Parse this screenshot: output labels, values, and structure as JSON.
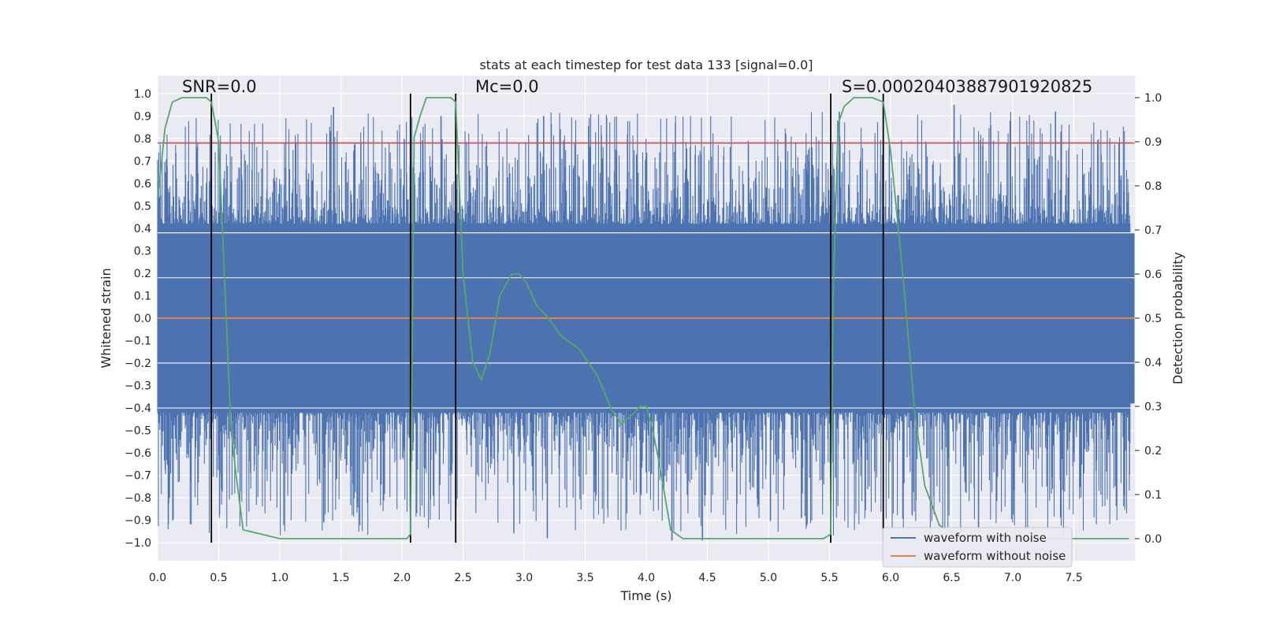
{
  "chart_data": {
    "type": "line",
    "title": "stats at each timestep for test data 133 [signal=0.0]",
    "xlabel": "Time (s)",
    "ylabel": "Whitened strain",
    "y2label": "Detection probability",
    "xlim": [
      0.0,
      8.0
    ],
    "ylim": [
      -1.08,
      1.08
    ],
    "y2lim": [
      -0.05,
      1.05
    ],
    "x_ticks": [
      0.0,
      0.5,
      1.0,
      1.5,
      2.0,
      2.5,
      3.0,
      3.5,
      4.0,
      4.5,
      5.0,
      5.5,
      6.0,
      6.5,
      7.0,
      7.5
    ],
    "x_tick_labels": [
      "0.0",
      "0.5",
      "1.0",
      "1.5",
      "2.0",
      "2.5",
      "3.0",
      "3.5",
      "4.0",
      "4.5",
      "5.0",
      "5.5",
      "6.0",
      "6.5",
      "7.0",
      "7.5"
    ],
    "y_ticks": [
      1.0,
      0.9,
      0.8,
      0.7,
      0.6,
      0.5,
      0.4,
      0.3,
      0.2,
      0.1,
      0.0,
      -0.1,
      -0.2,
      -0.3,
      -0.4,
      -0.5,
      -0.6,
      -0.7,
      -0.8,
      -0.9,
      -1.0
    ],
    "y_tick_labels": [
      "1.0",
      "0.9",
      "0.8",
      "0.7",
      "0.6",
      "0.5",
      "0.4",
      "0.3",
      "0.2",
      "0.1",
      "0.0",
      "−0.1",
      "−0.2",
      "−0.3",
      "−0.4",
      "−0.5",
      "−0.6",
      "−0.7",
      "−0.8",
      "−0.9",
      "−1.0"
    ],
    "y2_ticks": [
      1.0,
      0.9,
      0.8,
      0.7,
      0.6,
      0.5,
      0.4,
      0.3,
      0.2,
      0.1,
      0.0
    ],
    "y2_tick_labels": [
      "1.0",
      "0.9",
      "0.8",
      "0.7",
      "0.6",
      "0.5",
      "0.4",
      "0.3",
      "0.2",
      "0.1",
      "0.0"
    ],
    "annotations": [
      {
        "text": "SNR=0.0",
        "x": 0.2,
        "y": 1.02
      },
      {
        "text": "Mᴄ=0.0",
        "x": 2.6,
        "y": 1.02
      },
      {
        "text": "S=0.00020403887901920825",
        "x": 5.6,
        "y": 1.02
      }
    ],
    "threshold_line": {
      "y": 0.78,
      "color": "#c44e52"
    },
    "vertical_lines": [
      0.44,
      2.07,
      2.44,
      5.51,
      5.94
    ],
    "noise_envelope": {
      "upper": 0.45,
      "lower": -0.45,
      "spike_max": 0.94,
      "spike_min": -0.99
    },
    "series": [
      {
        "name": "waveform with noise",
        "color": "#4c72b0",
        "style": "dense-noise",
        "envelope": [
          0.45,
          -0.45
        ],
        "peaks": [
          {
            "x": 1.44,
            "y": 0.94
          },
          {
            "x": 2.32,
            "y": 0.9
          },
          {
            "x": 3.16,
            "y": 0.9
          },
          {
            "x": 5.58,
            "y": 0.92
          },
          {
            "x": 6.52,
            "y": 0.95
          },
          {
            "x": 7.35,
            "y": 0.92
          },
          {
            "x": 3.19,
            "y": -0.98
          },
          {
            "x": 4.21,
            "y": -0.99
          },
          {
            "x": 4.46,
            "y": -0.99
          },
          {
            "x": 6.72,
            "y": -0.98
          },
          {
            "x": 1.36,
            "y": -0.91
          },
          {
            "x": 5.27,
            "y": -0.89
          }
        ]
      },
      {
        "name": "waveform without noise",
        "color": "#dd8452",
        "x": [
          0.0,
          8.0
        ],
        "y": [
          0.0,
          0.0
        ]
      },
      {
        "name": "detection probability",
        "color": "#55a868",
        "axis": "right",
        "x": [
          0.0,
          0.03,
          0.06,
          0.12,
          0.2,
          0.3,
          0.4,
          0.44,
          0.5,
          0.6,
          0.64,
          0.7,
          1.0,
          1.5,
          2.0,
          2.04,
          2.07,
          2.1,
          2.15,
          2.2,
          2.3,
          2.4,
          2.44,
          2.5,
          2.58,
          2.65,
          2.72,
          2.8,
          2.9,
          2.96,
          3.02,
          3.1,
          3.2,
          3.3,
          3.45,
          3.6,
          3.72,
          3.8,
          3.88,
          3.95,
          4.0,
          4.05,
          4.1,
          4.15,
          4.2,
          4.3,
          4.5,
          4.65,
          4.8,
          5.0,
          5.3,
          5.45,
          5.51,
          5.53,
          5.57,
          5.62,
          5.7,
          5.85,
          5.94,
          6.0,
          6.1,
          6.2,
          6.28,
          6.4,
          6.6,
          7.0,
          7.5,
          7.95
        ],
        "y": [
          0.77,
          0.85,
          0.93,
          0.99,
          1.0,
          1.0,
          1.0,
          0.99,
          0.9,
          0.25,
          0.15,
          0.02,
          0.0,
          0.0,
          0.0,
          0.0,
          0.01,
          0.91,
          0.96,
          1.0,
          1.0,
          1.0,
          0.99,
          0.6,
          0.4,
          0.36,
          0.42,
          0.55,
          0.6,
          0.6,
          0.58,
          0.53,
          0.5,
          0.46,
          0.43,
          0.37,
          0.29,
          0.26,
          0.28,
          0.3,
          0.3,
          0.25,
          0.18,
          0.1,
          0.02,
          0.0,
          0.0,
          0.0,
          0.0,
          0.0,
          0.0,
          0.0,
          0.01,
          0.55,
          0.94,
          0.98,
          1.0,
          1.0,
          0.99,
          0.88,
          0.6,
          0.28,
          0.12,
          0.03,
          0.0,
          0.0,
          0.0,
          0.0
        ]
      }
    ],
    "legend": {
      "placement": "bottom-right",
      "entries": [
        {
          "label": "waveform with noise",
          "color": "#4c72b0"
        },
        {
          "label": "waveform without noise",
          "color": "#dd8452"
        }
      ]
    }
  }
}
